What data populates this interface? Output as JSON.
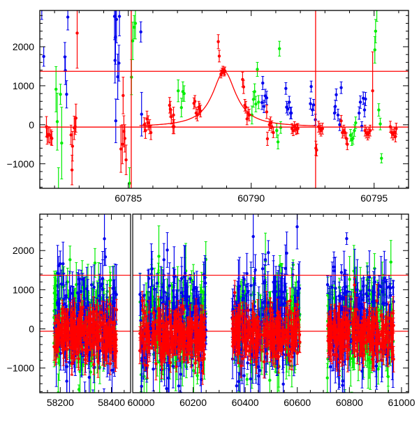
{
  "chart_data": [
    {
      "type": "scatter",
      "panel": "top",
      "title": "",
      "xlabel": "",
      "ylabel": "",
      "xlim": [
        60781.4,
        60796.4
      ],
      "ylim": [
        -1630,
        2930
      ],
      "xticks": [
        60785,
        60790,
        60795
      ],
      "xtick_labels": [
        "60785",
        "60790",
        "60795"
      ],
      "yticks": [
        -1000,
        0,
        1000,
        2000
      ],
      "ytick_labels": [
        "−1000",
        "0",
        "1000",
        "2000"
      ],
      "t_offset_origin": 60785,
      "hlines": [
        1370,
        -60
      ],
      "vlines": [
        60785.12,
        60792.62
      ],
      "model": {
        "type": "lorentzian",
        "center": 60788.9,
        "peak": 1370,
        "baseline": -60,
        "width_days": 0.58,
        "range": [
          60785.45,
          60792.6
        ]
      },
      "colors": {
        "g": "#00ee00",
        "b": "#0000ee",
        "r": "#ff0000"
      },
      "series": [
        {
          "name": "g",
          "points": [
            [
              -2.94,
              910,
              580
            ],
            [
              -2.89,
              80,
              730
            ],
            [
              -2.84,
              -1800,
              700
            ],
            [
              -2.76,
              780,
              260
            ],
            [
              -2.71,
              -470,
              920
            ],
            [
              0.05,
              -1500,
              400
            ],
            [
              0.13,
              1220,
              450
            ],
            [
              0.18,
              2150,
              480
            ],
            [
              0.24,
              2500,
              300
            ],
            [
              0.29,
              2600,
              400
            ],
            [
              2.03,
              870,
              280
            ],
            [
              2.16,
              440,
              240
            ],
            [
              2.22,
              850,
              250
            ],
            [
              2.27,
              800,
              200
            ],
            [
              5.03,
              250,
              230
            ],
            [
              5.09,
              650,
              200
            ],
            [
              5.14,
              850,
              200
            ],
            [
              5.19,
              530,
              200
            ],
            [
              5.25,
              1420,
              180
            ],
            [
              5.3,
              580,
              170
            ],
            [
              6.04,
              -150,
              180
            ],
            [
              6.09,
              -440,
              180
            ],
            [
              6.15,
              1950,
              190
            ],
            [
              6.2,
              -70,
              150
            ],
            [
              9.04,
              -270,
              150
            ],
            [
              9.09,
              -380,
              150
            ],
            [
              9.14,
              -350,
              150
            ],
            [
              9.2,
              -150,
              150
            ],
            [
              9.25,
              50,
              150
            ],
            [
              10.03,
              1920,
              340
            ],
            [
              10.06,
              2400,
              300
            ],
            [
              10.11,
              2950,
              300
            ],
            [
              10.19,
              380,
              160
            ],
            [
              10.25,
              20,
              150
            ],
            [
              10.3,
              -860,
              120
            ]
          ]
        },
        {
          "name": "b",
          "points": [
            [
              -3.52,
              2950,
              250
            ],
            [
              -3.44,
              1750,
              250
            ],
            [
              -2.58,
              1740,
              370
            ],
            [
              -2.56,
              1390,
              360
            ],
            [
              -2.51,
              780,
              350
            ],
            [
              -2.46,
              2760,
              330
            ],
            [
              -0.56,
              2780,
              600
            ],
            [
              -0.54,
              1650,
              580
            ],
            [
              -0.52,
              2250,
              700
            ],
            [
              -0.51,
              100,
              560
            ],
            [
              -0.48,
              2700,
              600
            ],
            [
              -0.43,
              1230,
              580
            ],
            [
              -0.38,
              1580,
              460
            ],
            [
              -0.36,
              2780,
              500
            ],
            [
              0.51,
              2380,
              260
            ],
            [
              0.54,
              270,
              560
            ],
            [
              5.44,
              570,
              180
            ],
            [
              5.47,
              1070,
              170
            ],
            [
              5.52,
              470,
              160
            ],
            [
              5.57,
              740,
              170
            ],
            [
              5.63,
              690,
              170
            ],
            [
              6.41,
              930,
              150
            ],
            [
              6.44,
              450,
              150
            ],
            [
              6.49,
              400,
              150
            ],
            [
              6.55,
              580,
              150
            ],
            [
              6.6,
              300,
              150
            ],
            [
              6.63,
              300,
              150
            ],
            [
              7.41,
              540,
              140
            ],
            [
              7.44,
              980,
              140
            ],
            [
              7.49,
              380,
              140
            ],
            [
              7.54,
              510,
              140
            ],
            [
              7.61,
              130,
              140
            ],
            [
              8.39,
              300,
              160
            ],
            [
              8.42,
              470,
              160
            ],
            [
              8.46,
              770,
              150
            ],
            [
              8.53,
              250,
              150
            ],
            [
              8.6,
              0,
              150
            ],
            [
              8.66,
              950,
              150
            ],
            [
              9.39,
              300,
              160
            ],
            [
              9.44,
              580,
              160
            ],
            [
              9.5,
              -40,
              120
            ],
            [
              9.56,
              680,
              160
            ],
            [
              9.61,
              380,
              180
            ],
            [
              9.65,
              660,
              170
            ]
          ]
        },
        {
          "name": "r",
          "points": [
            [
              -3.33,
              -50,
              260
            ],
            [
              -3.3,
              -300,
              200
            ],
            [
              -3.25,
              -250,
              200
            ],
            [
              -3.19,
              -270,
              200
            ],
            [
              -3.14,
              -320,
              190
            ],
            [
              -3.11,
              -350,
              180
            ],
            [
              -2.33,
              -260,
              250
            ],
            [
              -2.29,
              -1160,
              380
            ],
            [
              -2.27,
              -550,
              380
            ],
            [
              -2.2,
              -80,
              300
            ],
            [
              -2.16,
              -50,
              200
            ],
            [
              -2.13,
              170,
              360
            ],
            [
              -2.08,
              2350,
              900
            ],
            [
              -0.3,
              -620,
              600
            ],
            [
              -0.24,
              -500,
              500
            ],
            [
              -0.21,
              750,
              470
            ],
            [
              -0.18,
              -170,
              400
            ],
            [
              -0.14,
              -350,
              350
            ],
            [
              -0.09,
              -900,
              380
            ],
            [
              0.65,
              0,
              180
            ],
            [
              0.7,
              -150,
              200
            ],
            [
              0.76,
              150,
              200
            ],
            [
              0.81,
              50,
              180
            ],
            [
              0.87,
              -50,
              180
            ],
            [
              0.92,
              -200,
              180
            ],
            [
              1.68,
              500,
              200
            ],
            [
              1.71,
              400,
              200
            ],
            [
              1.75,
              200,
              180
            ],
            [
              1.82,
              -50,
              180
            ],
            [
              1.84,
              250,
              200
            ],
            [
              1.86,
              -50,
              180
            ],
            [
              2.67,
              550,
              140
            ],
            [
              2.71,
              600,
              150
            ],
            [
              2.76,
              300,
              150
            ],
            [
              2.81,
              250,
              150
            ],
            [
              2.87,
              450,
              150
            ],
            [
              2.9,
              400,
              150
            ],
            [
              2.94,
              350,
              150
            ],
            [
              3.66,
              2130,
              180
            ],
            [
              3.7,
              1760,
              150
            ],
            [
              3.77,
              1300,
              100
            ],
            [
              3.81,
              1350,
              100
            ],
            [
              3.85,
              1400,
              100
            ],
            [
              3.9,
              1350,
              100
            ],
            [
              3.93,
              1380,
              100
            ],
            [
              4.65,
              1160,
              190
            ],
            [
              4.69,
              970,
              170
            ],
            [
              4.74,
              500,
              150
            ],
            [
              4.78,
              450,
              150
            ],
            [
              4.83,
              150,
              150
            ],
            [
              4.87,
              300,
              150
            ],
            [
              4.92,
              250,
              150
            ],
            [
              5.63,
              330,
              170
            ],
            [
              5.66,
              -360,
              170
            ],
            [
              5.74,
              0,
              150
            ],
            [
              5.79,
              50,
              150
            ],
            [
              5.84,
              -50,
              150
            ],
            [
              5.9,
              -200,
              130
            ],
            [
              6.66,
              -100,
              130
            ],
            [
              6.71,
              -150,
              130
            ],
            [
              6.76,
              -50,
              130
            ],
            [
              6.82,
              -120,
              130
            ],
            [
              6.87,
              -100,
              130
            ],
            [
              6.9,
              -100,
              130
            ],
            [
              7.63,
              -600,
              180
            ],
            [
              7.66,
              -650,
              150
            ],
            [
              7.74,
              -50,
              140
            ],
            [
              7.79,
              -100,
              140
            ],
            [
              7.84,
              -150,
              140
            ],
            [
              7.9,
              -100,
              140
            ],
            [
              8.66,
              100,
              140
            ],
            [
              8.71,
              -200,
              140
            ],
            [
              8.77,
              -150,
              140
            ],
            [
              8.82,
              -200,
              140
            ],
            [
              8.87,
              -350,
              140
            ],
            [
              8.91,
              -500,
              140
            ],
            [
              9.63,
              -150,
              140
            ],
            [
              9.68,
              -200,
              140
            ],
            [
              9.74,
              -250,
              140
            ],
            [
              9.79,
              -200,
              140
            ],
            [
              9.84,
              -150,
              140
            ],
            [
              9.94,
              870,
              1000
            ],
            [
              10.66,
              -50,
              140
            ],
            [
              10.71,
              -200,
              140
            ],
            [
              10.77,
              -250,
              140
            ],
            [
              10.82,
              -200,
              140
            ],
            [
              10.87,
              -300,
              140
            ],
            [
              10.9,
              -100,
              140
            ]
          ]
        }
      ]
    },
    {
      "type": "scatter",
      "panel": "bottom",
      "title": "",
      "xlabel": "",
      "ylabel": "",
      "broken_x_axis": [
        [
          58120,
          58475
        ],
        [
          59968,
          61027
        ]
      ],
      "ylim": [
        -1630,
        2930
      ],
      "xticks": [
        58200,
        58400,
        60000,
        60200,
        60400,
        60600,
        60800,
        61000
      ],
      "xtick_labels": [
        "58200",
        "58400",
        "60000",
        "60200",
        "60400",
        "60600",
        "60800",
        "61000"
      ],
      "yticks": [
        -1000,
        0,
        1000,
        2000
      ],
      "ytick_labels": [
        "−1000",
        "0",
        "1000",
        "2000"
      ],
      "hlines": [
        1370,
        -60
      ],
      "seasons": [
        [
          58175,
          58420
        ],
        [
          59995,
          60250
        ],
        [
          60350,
          60610
        ],
        [
          60715,
          60970
        ]
      ],
      "series_summary": [
        {
          "name": "g",
          "median": 100,
          "scatter": 900
        },
        {
          "name": "b",
          "median": 200,
          "scatter": 1000
        },
        {
          "name": "r",
          "median": -150,
          "scatter": 450
        }
      ],
      "colors": {
        "g": "#00ee00",
        "b": "#0000ee",
        "r": "#ff0000"
      }
    }
  ]
}
